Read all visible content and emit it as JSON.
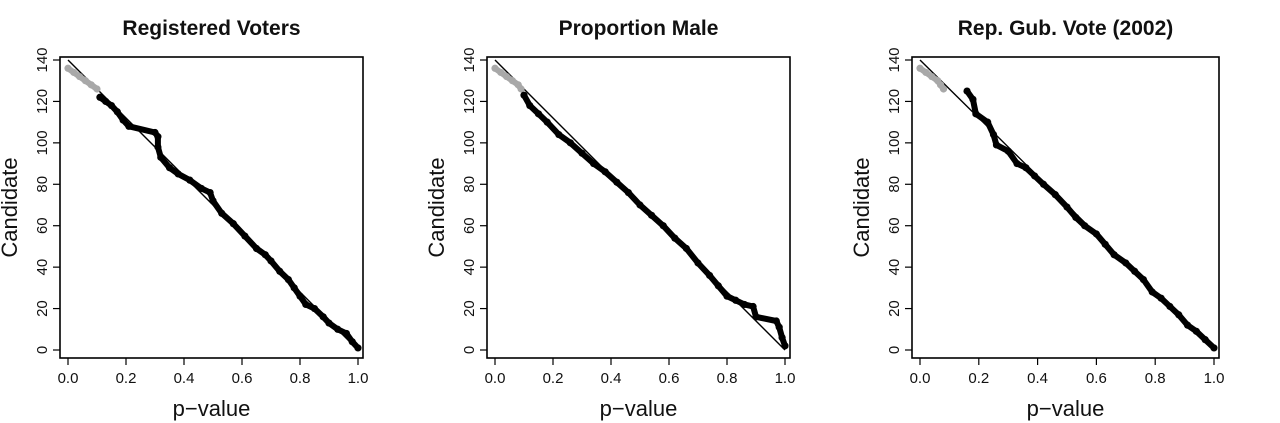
{
  "chart_data": [
    {
      "type": "scatter",
      "title": "Registered Voters",
      "xlabel": "p−value",
      "ylabel": "Candidate",
      "xlim": [
        0,
        1
      ],
      "ylim": [
        0,
        140
      ],
      "xticks": [
        "0.0",
        "0.2",
        "0.4",
        "0.6",
        "0.8",
        "1.0"
      ],
      "yticks": [
        "0",
        "20",
        "40",
        "60",
        "80",
        "100",
        "120",
        "140"
      ],
      "reference_line": {
        "from": [
          0,
          140
        ],
        "to": [
          1,
          0
        ]
      },
      "colors": {
        "highlighted": "#000000",
        "muted": "#a8a8a8",
        "line": "#000000"
      },
      "series": [
        {
          "values": [
            [
              0.0,
              136
            ],
            [
              0.02,
              134
            ],
            [
              0.04,
              132
            ],
            [
              0.06,
              130
            ],
            [
              0.08,
              128
            ],
            [
              0.1,
              126
            ]
          ],
          "color": "#a8a8a8"
        },
        {
          "values": [
            [
              0.11,
              122
            ],
            [
              0.13,
              120
            ],
            [
              0.15,
              118
            ],
            [
              0.17,
              115
            ],
            [
              0.19,
              111
            ],
            [
              0.21,
              108
            ],
            [
              0.3,
              105
            ],
            [
              0.31,
              103
            ],
            [
              0.31,
              98
            ],
            [
              0.32,
              93
            ],
            [
              0.35,
              88
            ],
            [
              0.38,
              85
            ],
            [
              0.42,
              82
            ],
            [
              0.46,
              78
            ],
            [
              0.49,
              76
            ],
            [
              0.5,
              72
            ],
            [
              0.53,
              66
            ],
            [
              0.57,
              61
            ],
            [
              0.61,
              55
            ],
            [
              0.65,
              49
            ],
            [
              0.68,
              46
            ],
            [
              0.7,
              43
            ],
            [
              0.73,
              38
            ],
            [
              0.76,
              34
            ],
            [
              0.78,
              30
            ],
            [
              0.8,
              26
            ],
            [
              0.82,
              22
            ],
            [
              0.85,
              20
            ],
            [
              0.88,
              16
            ],
            [
              0.9,
              13
            ],
            [
              0.93,
              10
            ],
            [
              0.96,
              8
            ],
            [
              0.98,
              4
            ],
            [
              1.0,
              1
            ]
          ],
          "color": "#000000"
        }
      ]
    },
    {
      "type": "scatter",
      "title": "Proportion Male",
      "xlabel": "p−value",
      "ylabel": "Candidate",
      "xlim": [
        0,
        1
      ],
      "ylim": [
        0,
        140
      ],
      "xticks": [
        "0.0",
        "0.2",
        "0.4",
        "0.6",
        "0.8",
        "1.0"
      ],
      "yticks": [
        "0",
        "20",
        "40",
        "60",
        "80",
        "100",
        "120",
        "140"
      ],
      "reference_line": {
        "from": [
          0,
          140
        ],
        "to": [
          1,
          0
        ]
      },
      "colors": {
        "highlighted": "#000000",
        "muted": "#a8a8a8",
        "line": "#000000"
      },
      "series": [
        {
          "values": [
            [
              0.0,
              136
            ],
            [
              0.02,
              134
            ],
            [
              0.04,
              132
            ],
            [
              0.06,
              130
            ],
            [
              0.08,
              128
            ],
            [
              0.09,
              126
            ]
          ],
          "color": "#a8a8a8"
        },
        {
          "values": [
            [
              0.1,
              123
            ],
            [
              0.12,
              118
            ],
            [
              0.15,
              114
            ],
            [
              0.18,
              110
            ],
            [
              0.22,
              104
            ],
            [
              0.26,
              100
            ],
            [
              0.3,
              95
            ],
            [
              0.34,
              90
            ],
            [
              0.38,
              86
            ],
            [
              0.42,
              81
            ],
            [
              0.46,
              76
            ],
            [
              0.5,
              70
            ],
            [
              0.54,
              65
            ],
            [
              0.58,
              60
            ],
            [
              0.62,
              54
            ],
            [
              0.66,
              49
            ],
            [
              0.7,
              42
            ],
            [
              0.74,
              36
            ],
            [
              0.77,
              31
            ],
            [
              0.8,
              26
            ],
            [
              0.83,
              24
            ],
            [
              0.86,
              22
            ],
            [
              0.89,
              21
            ],
            [
              0.9,
              16
            ],
            [
              0.97,
              14
            ],
            [
              0.98,
              11
            ],
            [
              0.99,
              6
            ],
            [
              1.0,
              2
            ]
          ],
          "color": "#000000"
        }
      ]
    },
    {
      "type": "scatter",
      "title": "Rep. Gub. Vote (2002)",
      "xlabel": "p−value",
      "ylabel": "Candidate",
      "xlim": [
        0,
        1
      ],
      "ylim": [
        0,
        140
      ],
      "xticks": [
        "0.0",
        "0.2",
        "0.4",
        "0.6",
        "0.8",
        "1.0"
      ],
      "yticks": [
        "0",
        "20",
        "40",
        "60",
        "80",
        "100",
        "120",
        "140"
      ],
      "reference_line": {
        "from": [
          0,
          140
        ],
        "to": [
          1,
          0
        ]
      },
      "colors": {
        "highlighted": "#000000",
        "muted": "#a8a8a8",
        "line": "#000000"
      },
      "series": [
        {
          "values": [
            [
              0.0,
              136
            ],
            [
              0.02,
              134
            ],
            [
              0.04,
              132
            ],
            [
              0.06,
              130
            ],
            [
              0.07,
              128
            ],
            [
              0.08,
              126
            ]
          ],
          "color": "#a8a8a8"
        },
        {
          "values": [
            [
              0.16,
              125
            ],
            [
              0.18,
              121
            ],
            [
              0.19,
              114
            ],
            [
              0.23,
              110
            ],
            [
              0.25,
              104
            ],
            [
              0.26,
              99
            ],
            [
              0.3,
              96
            ],
            [
              0.33,
              90
            ],
            [
              0.36,
              88
            ],
            [
              0.39,
              84
            ],
            [
              0.42,
              80
            ],
            [
              0.46,
              75
            ],
            [
              0.5,
              69
            ],
            [
              0.53,
              64
            ],
            [
              0.56,
              60
            ],
            [
              0.6,
              56
            ],
            [
              0.63,
              51
            ],
            [
              0.66,
              46
            ],
            [
              0.7,
              42
            ],
            [
              0.73,
              38
            ],
            [
              0.76,
              34
            ],
            [
              0.79,
              28
            ],
            [
              0.82,
              25
            ],
            [
              0.85,
              21
            ],
            [
              0.88,
              17
            ],
            [
              0.91,
              12
            ],
            [
              0.94,
              9
            ],
            [
              0.97,
              5
            ],
            [
              1.0,
              1
            ]
          ],
          "color": "#000000"
        }
      ]
    }
  ]
}
